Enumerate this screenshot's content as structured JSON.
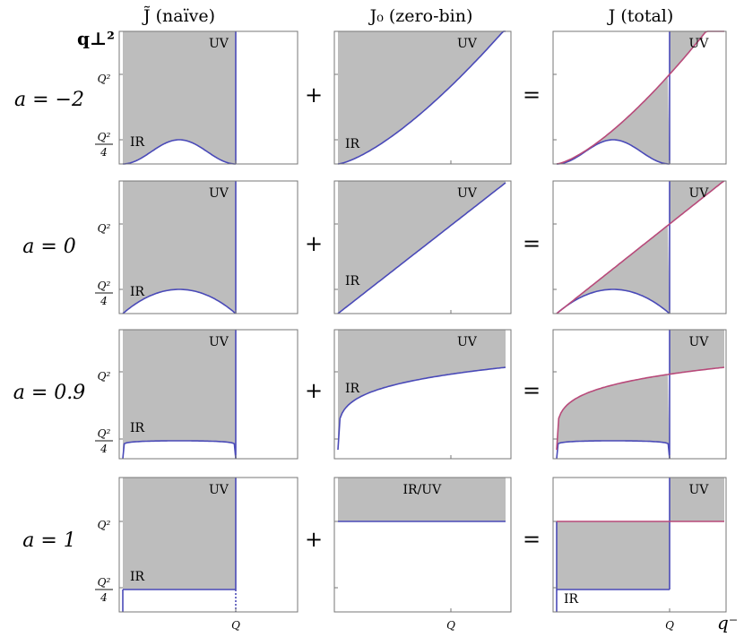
{
  "columns": [
    {
      "title": "J̃ (naïve)"
    },
    {
      "title": "J₀ (zero-bin)"
    },
    {
      "title": "J (total)"
    }
  ],
  "rows": [
    {
      "label": "a = −2",
      "a": -2,
      "regions": [
        [
          "IR",
          "UV"
        ],
        [
          "IR",
          "UV"
        ],
        [
          "UV"
        ]
      ]
    },
    {
      "label": "a = 0",
      "a": 0,
      "regions": [
        [
          "IR",
          "UV"
        ],
        [
          "IR",
          "UV"
        ],
        [
          "UV"
        ]
      ]
    },
    {
      "label": "a = 0.9",
      "a": 0.9,
      "regions": [
        [
          "IR",
          "UV"
        ],
        [
          "IR",
          "UV"
        ],
        [
          "UV"
        ]
      ]
    },
    {
      "label": "a = 1",
      "a": 1,
      "regions": [
        [
          "IR",
          "UV"
        ],
        [
          "IR/UV"
        ],
        [
          "IR",
          "UV"
        ]
      ]
    }
  ],
  "operators": {
    "plus": "+",
    "equals": "="
  },
  "axes": {
    "y_label": "q⊥²",
    "x_label": "q⁻",
    "y_ticks": {
      "q2": "Q²",
      "q2_over_4_num": "Q²",
      "q2_over_4_den": "4"
    },
    "x_tick": "Q"
  },
  "colors": {
    "fill": "#bdbdbd",
    "boundary": "#4a4ab8",
    "zero_bin_curve": "#b84a7a",
    "frame": "#777777"
  }
}
